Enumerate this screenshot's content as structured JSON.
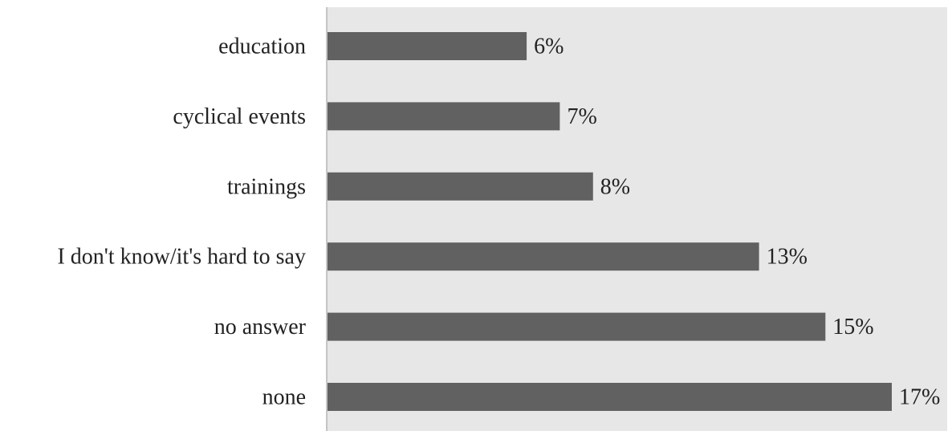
{
  "chart_data": {
    "type": "bar",
    "orientation": "horizontal",
    "categories": [
      "education",
      "cyclical events",
      "trainings ",
      "I don't know/it's hard to say",
      "no answer",
      "none"
    ],
    "series": [
      {
        "values": [
          6,
          7,
          8,
          13,
          15,
          17
        ],
        "labels": [
          "6%",
          "7%",
          "8%",
          "13%",
          "15%",
          "17%"
        ]
      }
    ],
    "unit": "%",
    "title": "",
    "xlabel": "",
    "ylabel": "",
    "xlim": [
      0,
      17
    ],
    "grid": false,
    "legend": "none",
    "colors": {
      "bar": "#616161",
      "plot_background": "#e7e7e7",
      "axis_line": "#b5b5b5",
      "text": "#222222"
    }
  }
}
